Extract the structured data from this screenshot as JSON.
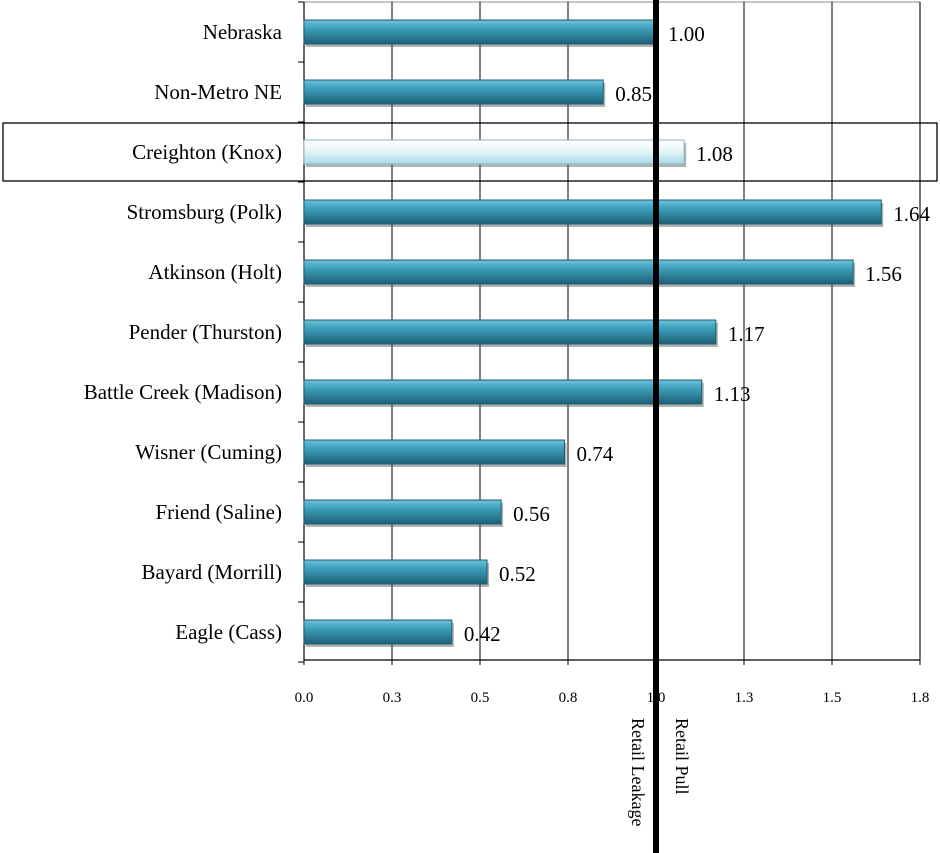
{
  "chart_data": {
    "type": "bar",
    "orientation": "horizontal",
    "categories": [
      "Nebraska",
      "Non-Metro NE",
      "Creighton (Knox)",
      "Stromsburg (Polk)",
      "Atkinson (Holt)",
      "Pender (Thurston)",
      "Battle Creek (Madison)",
      "Wisner (Cuming)",
      "Friend (Saline)",
      "Bayard (Morrill)",
      "Eagle (Cass)"
    ],
    "values": [
      1.0,
      0.85,
      1.08,
      1.64,
      1.56,
      1.17,
      1.13,
      0.74,
      0.56,
      0.52,
      0.42
    ],
    "value_labels": [
      "1.00",
      "0.85",
      "1.08",
      "1.64",
      "1.56",
      "1.17",
      "1.13",
      "0.74",
      "0.56",
      "0.52",
      "0.42"
    ],
    "highlighted_category": "Creighton (Knox)",
    "xlim": [
      0,
      1.75
    ],
    "x_ticks": [
      0,
      0.25,
      0.5,
      0.75,
      1.0,
      1.25,
      1.5,
      1.75
    ],
    "x_tick_labels": [
      "0.0",
      "0.3",
      "0.5",
      "0.8",
      "1.0",
      "1.3",
      "1.5",
      "1.8"
    ],
    "reference_line": {
      "value": 1.0,
      "left_label": "Retail Leakage",
      "right_label": "Retail Pull"
    },
    "grid": "vertical",
    "legend": "none",
    "colors": {
      "bar": "#2f8aa6",
      "bar_dark": "#1c5f75",
      "bar_light": "#6cc3d9",
      "highlight_bar": "#d8f1f7",
      "highlight_border": "#8ab6c4",
      "gridline": "#000000",
      "reference_line": "#000000"
    }
  }
}
